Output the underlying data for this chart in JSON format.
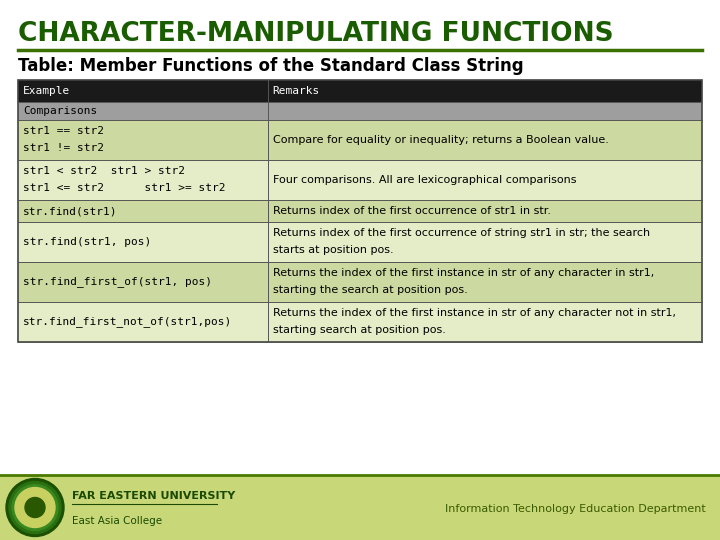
{
  "title": "CHARACTER-MANIPULATING FUNCTIONS",
  "subtitle": "Table: Member Functions of the Standard Class String",
  "title_color": "#1a5c00",
  "subtitle_color": "#000000",
  "line_color": "#3a7000",
  "bg_color": "#ffffff",
  "header_bg": "#1a1a1a",
  "header_fg": "#ffffff",
  "row_alt1": "#ccd9a0",
  "row_alt2": "#e4edc8",
  "comparisons_bg": "#9e9e9e",
  "footer_bg": "#c8d878",
  "footer_line_color": "#6a9a00",
  "footer_text_color": "#1a4a00",
  "footer_right_color": "#3a5a00",
  "table_data": [
    [
      "Example",
      "Remarks"
    ],
    [
      "Comparisons",
      ""
    ],
    [
      "str1 == str2\nstr1 != str2",
      "Compare for equality or inequality; returns a Boolean value."
    ],
    [
      "str1 < str2  str1 > str2\nstr1 <= str2      str1 >= str2",
      "Four comparisons. All are lexicographical comparisons"
    ],
    [
      "str.find(str1)",
      "Returns index of the first occurrence of str1 in str."
    ],
    [
      "str.find(str1, pos)",
      "Returns index of the first occurrence of string str1 in str; the search\nstarts at position pos."
    ],
    [
      "str.find_first_of(str1, pos)",
      "Returns the index of the first instance in str of any character in str1,\nstarting the search at position pos."
    ],
    [
      "str.find_first_not_of(str1,pos)",
      "Returns the index of the first instance in str of any character not in str1,\nstarting search at position pos."
    ]
  ],
  "footer_university": "FAR EASTERN UNIVERSITY",
  "footer_college": "East Asia College",
  "footer_dept": "Information Technology Education Department"
}
